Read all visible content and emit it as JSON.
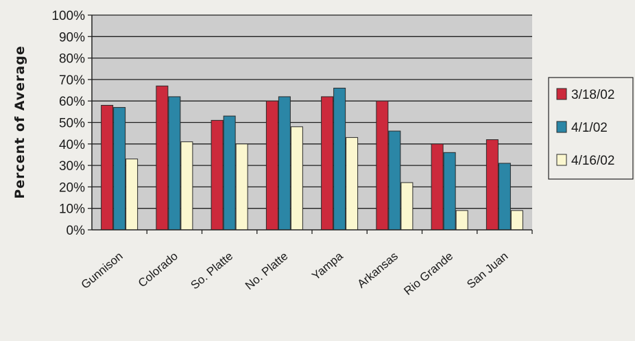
{
  "chart_data": {
    "type": "bar",
    "title": "",
    "xlabel": "",
    "ylabel": "Percent of Average",
    "ylim": [
      0,
      100
    ],
    "yticks": [
      "0%",
      "10%",
      "20%",
      "30%",
      "40%",
      "50%",
      "60%",
      "70%",
      "80%",
      "90%",
      "100%"
    ],
    "categories": [
      "Gunnison",
      "Colorado",
      "So. Platte",
      "No. Platte",
      "Yampa",
      "Arkansas",
      "Rio Grande",
      "San Juan"
    ],
    "series": [
      {
        "name": "3/18/02",
        "color": "#cc2a3c",
        "values": [
          58,
          67,
          51,
          60,
          62,
          60,
          40,
          42
        ]
      },
      {
        "name": "4/1/02",
        "color": "#2b86a6",
        "values": [
          57,
          62,
          53,
          62,
          66,
          46,
          36,
          31
        ]
      },
      {
        "name": "4/16/02",
        "color": "#fbf7cf",
        "values": [
          33,
          41,
          40,
          48,
          43,
          22,
          9,
          9
        ]
      }
    ],
    "grid": true,
    "legend_position": "right",
    "plot_background": "#cdcdcd"
  }
}
